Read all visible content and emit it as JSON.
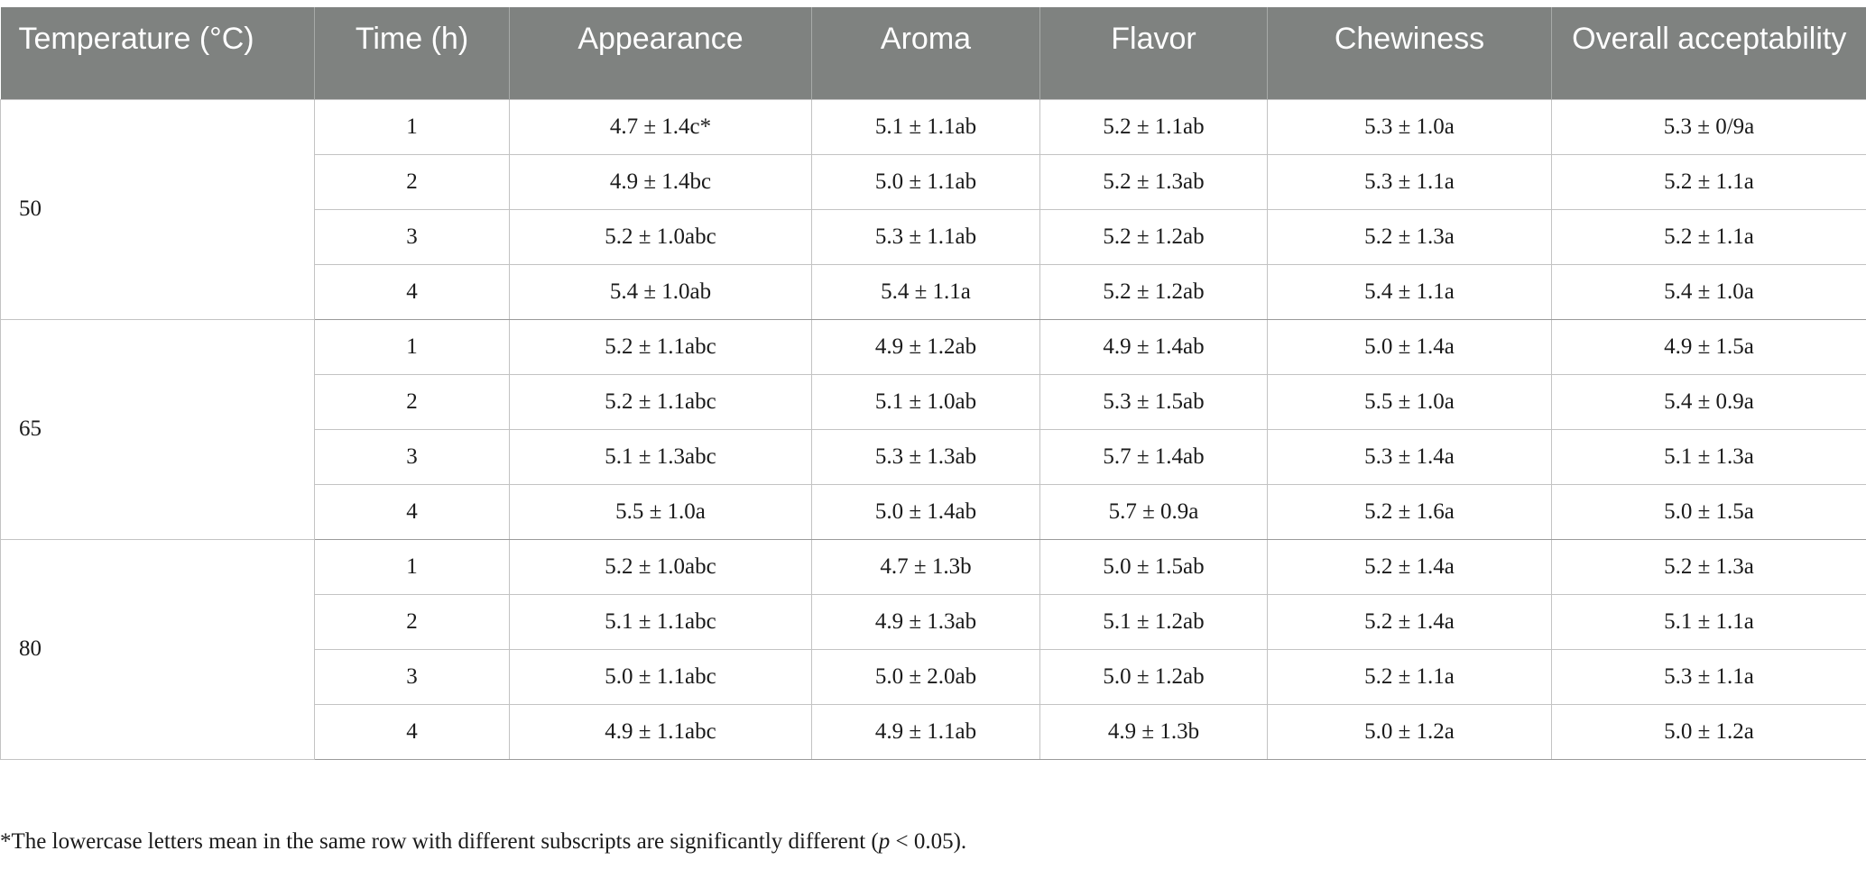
{
  "table": {
    "headers": [
      "Temperature (°C)",
      "Time (h)",
      "Appearance",
      "Aroma",
      "Flavor",
      "Chewiness",
      "Overall acceptability"
    ],
    "groups": [
      {
        "temperature": "50",
        "rows": [
          {
            "time": "1",
            "appearance": "4.7 ± 1.4c*",
            "aroma": "5.1 ± 1.1ab",
            "flavor": "5.2 ± 1.1ab",
            "chewiness": "5.3 ± 1.0a",
            "overall": "5.3 ± 0/9a"
          },
          {
            "time": "2",
            "appearance": "4.9 ± 1.4bc",
            "aroma": "5.0 ± 1.1ab",
            "flavor": "5.2 ± 1.3ab",
            "chewiness": "5.3 ± 1.1a",
            "overall": "5.2 ± 1.1a"
          },
          {
            "time": "3",
            "appearance": "5.2 ± 1.0abc",
            "aroma": "5.3 ± 1.1ab",
            "flavor": "5.2 ± 1.2ab",
            "chewiness": "5.2 ± 1.3a",
            "overall": "5.2 ± 1.1a"
          },
          {
            "time": "4",
            "appearance": "5.4 ± 1.0ab",
            "aroma": "5.4 ± 1.1a",
            "flavor": "5.2 ± 1.2ab",
            "chewiness": "5.4 ± 1.1a",
            "overall": "5.4 ± 1.0a"
          }
        ]
      },
      {
        "temperature": "65",
        "rows": [
          {
            "time": "1",
            "appearance": "5.2 ± 1.1abc",
            "aroma": "4.9 ± 1.2ab",
            "flavor": "4.9 ± 1.4ab",
            "chewiness": "5.0 ± 1.4a",
            "overall": "4.9 ± 1.5a"
          },
          {
            "time": "2",
            "appearance": "5.2 ± 1.1abc",
            "aroma": "5.1 ± 1.0ab",
            "flavor": "5.3 ± 1.5ab",
            "chewiness": "5.5 ± 1.0a",
            "overall": "5.4 ± 0.9a"
          },
          {
            "time": "3",
            "appearance": "5.1 ± 1.3abc",
            "aroma": "5.3 ± 1.3ab",
            "flavor": "5.7 ± 1.4ab",
            "chewiness": "5.3 ± 1.4a",
            "overall": "5.1 ± 1.3a"
          },
          {
            "time": "4",
            "appearance": "5.5 ± 1.0a",
            "aroma": "5.0 ± 1.4ab",
            "flavor": "5.7 ± 0.9a",
            "chewiness": "5.2 ± 1.6a",
            "overall": "5.0 ± 1.5a"
          }
        ]
      },
      {
        "temperature": "80",
        "rows": [
          {
            "time": "1",
            "appearance": "5.2 ± 1.0abc",
            "aroma": "4.7 ± 1.3b",
            "flavor": "5.0 ± 1.5ab",
            "chewiness": "5.2 ± 1.4a",
            "overall": "5.2 ± 1.3a"
          },
          {
            "time": "2",
            "appearance": "5.1 ± 1.1abc",
            "aroma": "4.9 ± 1.3ab",
            "flavor": "5.1 ± 1.2ab",
            "chewiness": "5.2 ± 1.4a",
            "overall": "5.1 ± 1.1a"
          },
          {
            "time": "3",
            "appearance": "5.0 ± 1.1abc",
            "aroma": "5.0 ± 2.0ab",
            "flavor": "5.0 ± 1.2ab",
            "chewiness": "5.2 ± 1.1a",
            "overall": "5.3 ± 1.1a"
          },
          {
            "time": "4",
            "appearance": "4.9 ± 1.1abc",
            "aroma": "4.9 ± 1.1ab",
            "flavor": "4.9 ± 1.3b",
            "chewiness": "5.0 ± 1.2a",
            "overall": "5.0 ± 1.2a"
          }
        ]
      }
    ]
  },
  "footnote": {
    "before": "*The lowercase letters mean in the same row with different subscripts are significantly different (",
    "italic": "p",
    "after": " < 0.05)."
  }
}
